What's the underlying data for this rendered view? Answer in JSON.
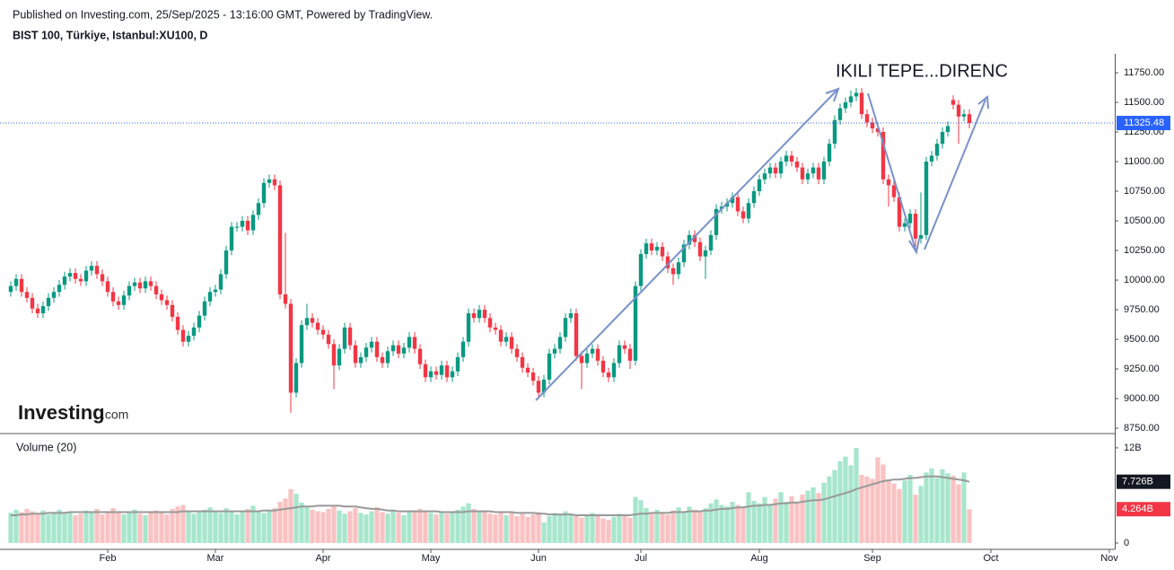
{
  "chart_data": {
    "type": "candlestick",
    "subtitle": "Published on Investing.com, 25/Sep/2025 - 13:16:00 GMT, Powered by TradingView.",
    "title": "BIST 100, Türkiye, Istanbul:XU100, D",
    "annotation": "IKILI TEPE...DIRENC",
    "watermark": "Investing",
    "watermark_suffix": ".com",
    "volume_title": "Volume (20)",
    "up_color": "#089981",
    "down_color": "#f23645",
    "volume_up_color": "#a7e6cc",
    "volume_down_color": "#f9c2c2",
    "ma_color": "#999999",
    "last_price_color": "#2962ff",
    "annotation_color": "#e8141b",
    "grid": false,
    "xlim": [
      -2,
      205
    ],
    "xticks": [
      {
        "value": 18,
        "label": "Feb"
      },
      {
        "value": 38,
        "label": "Mar"
      },
      {
        "value": 58,
        "label": "Apr"
      },
      {
        "value": 78,
        "label": "May"
      },
      {
        "value": 98,
        "label": "Jun"
      },
      {
        "value": 117,
        "label": "Jul"
      },
      {
        "value": 139,
        "label": "Aug"
      },
      {
        "value": 160,
        "label": "Sep"
      },
      {
        "value": 182,
        "label": "Oct"
      },
      {
        "value": 204,
        "label": "Nov"
      }
    ],
    "ylim": [
      8705,
      11909
    ],
    "yticks": [
      {
        "value": 8750,
        "label": "8750.00"
      },
      {
        "value": 9000,
        "label": "9000.00"
      },
      {
        "value": 9250,
        "label": "9250.00"
      },
      {
        "value": 9500,
        "label": "9500.00"
      },
      {
        "value": 9750,
        "label": "9750.00"
      },
      {
        "value": 10000,
        "label": "10000.00"
      },
      {
        "value": 10250,
        "label": "10250.00"
      },
      {
        "value": 10500,
        "label": "10500.00"
      },
      {
        "value": 10750,
        "label": "10750.00"
      },
      {
        "value": 11000,
        "label": "11000.00"
      },
      {
        "value": 11250,
        "label": "11250.00"
      },
      {
        "value": 11500,
        "label": "11500.00"
      },
      {
        "value": 11750,
        "label": "11750.00"
      }
    ],
    "y2lim": [
      -0.8,
      13.8
    ],
    "y2ticks": [
      0,
      {
        "value": 12,
        "label": "12B"
      }
    ],
    "volume_last_label": "4.264B",
    "volume_ma_last_label": "7.726B",
    "open": [
      9900,
      9950,
      10010,
      9900,
      9850,
      9760,
      9720,
      9780,
      9850,
      9900,
      9960,
      10030,
      10060,
      10010,
      9990,
      10080,
      10120,
      10050,
      9990,
      9900,
      9820,
      9790,
      9870,
      9950,
      9980,
      9930,
      9990,
      9950,
      9880,
      9830,
      9790,
      9690,
      9580,
      9480,
      9530,
      9600,
      9700,
      9820,
      9900,
      9920,
      10050,
      10250,
      10450,
      10450,
      10500,
      10420,
      10550,
      10650,
      10820,
      10850,
      10800,
      9880,
      9800,
      9050,
      9300,
      9620,
      9680,
      9640,
      9580,
      9540,
      9460,
      9280,
      9420,
      9600,
      9450,
      9300,
      9350,
      9430,
      9480,
      9350,
      9300,
      9400,
      9450,
      9380,
      9430,
      9520,
      9420,
      9290,
      9180,
      9230,
      9200,
      9280,
      9180,
      9230,
      9350,
      9480,
      9720,
      9680,
      9750,
      9680,
      9600,
      9580,
      9480,
      9520,
      9420,
      9350,
      9260,
      9220,
      9150,
      9050,
      9160,
      9380,
      9420,
      9520,
      9680,
      9720,
      9360,
      9300,
      9380,
      9420,
      9320,
      9220,
      9180,
      9300,
      9450,
      9420,
      9320,
      9950,
      10220,
      10310,
      10250,
      10280,
      10200,
      10100,
      10050,
      10150,
      10300,
      10380,
      10320,
      10200,
      10250,
      10380,
      10600,
      10620,
      10650,
      10700,
      10580,
      10520,
      10650,
      10750,
      10850,
      10900,
      10950,
      10900,
      11000,
      11050,
      11000,
      10950,
      10850,
      10900,
      10950,
      10850,
      11000,
      11150,
      11350,
      11450,
      11500,
      11550,
      11580,
      11400,
      11330,
      11280,
      11250,
      10850,
      10800,
      10700,
      10450,
      10480,
      10560,
      10350,
      10380,
      11000,
      11050,
      11150,
      11250,
      11520,
      11480,
      11380,
      11400
    ],
    "high": [
      9990,
      10050,
      10050,
      9940,
      9890,
      9800,
      9820,
      9890,
      9940,
      10000,
      10070,
      10100,
      10100,
      10050,
      10120,
      10160,
      10160,
      10090,
      10030,
      9940,
      9860,
      9910,
      9990,
      10020,
      10020,
      10030,
      10030,
      9990,
      9920,
      9870,
      9830,
      9730,
      9620,
      9570,
      9640,
      9740,
      9860,
      9940,
      9960,
      10090,
      10290,
      10490,
      10490,
      10540,
      10540,
      10590,
      10690,
      10860,
      10890,
      10890,
      10840,
      10400,
      9840,
      9340,
      9660,
      9800,
      9720,
      9680,
      9620,
      9580,
      9500,
      9460,
      9640,
      9640,
      9490,
      9390,
      9470,
      9520,
      9520,
      9390,
      9440,
      9490,
      9490,
      9470,
      9560,
      9560,
      9460,
      9330,
      9270,
      9270,
      9320,
      9320,
      9270,
      9390,
      9520,
      9760,
      9760,
      9790,
      9790,
      9720,
      9640,
      9620,
      9560,
      9560,
      9460,
      9390,
      9300,
      9260,
      9190,
      9200,
      9420,
      9460,
      9560,
      9720,
      9760,
      9760,
      9400,
      9420,
      9460,
      9460,
      9360,
      9260,
      9340,
      9490,
      9490,
      9460,
      9990,
      10260,
      10350,
      10350,
      10320,
      10320,
      10240,
      10140,
      10190,
      10340,
      10420,
      10420,
      10360,
      10290,
      10420,
      10640,
      10660,
      10690,
      10740,
      10740,
      10620,
      10690,
      10790,
      10890,
      10940,
      10990,
      10990,
      11040,
      11090,
      11090,
      11040,
      10990,
      10940,
      10990,
      10990,
      11040,
      11190,
      11390,
      11490,
      11540,
      11600,
      11620,
      11620,
      11440,
      11370,
      11320,
      11290,
      10890,
      10840,
      10740,
      10520,
      10600,
      10600,
      10740,
      11040,
      11090,
      11190,
      11290,
      11340,
      11560,
      11520,
      11440,
      11440
    ],
    "low": [
      9860,
      9910,
      9860,
      9810,
      9720,
      9680,
      9680,
      9740,
      9810,
      9860,
      9920,
      9990,
      9970,
      9950,
      9950,
      10040,
      10010,
      9950,
      9860,
      9780,
      9750,
      9750,
      9830,
      9910,
      9890,
      9890,
      9910,
      9840,
      9790,
      9750,
      9650,
      9540,
      9440,
      9440,
      9490,
      9560,
      9660,
      9780,
      9860,
      9880,
      10010,
      10210,
      10410,
      10410,
      10380,
      10380,
      10510,
      10610,
      10780,
      10760,
      9840,
      9760,
      8880,
      9010,
      9260,
      9580,
      9600,
      9540,
      9500,
      9420,
      9080,
      9240,
      9380,
      9410,
      9260,
      9260,
      9310,
      9390,
      9310,
      9260,
      9260,
      9360,
      9340,
      9340,
      9390,
      9380,
      9250,
      9140,
      9140,
      9160,
      9160,
      9140,
      9140,
      9190,
      9310,
      9440,
      9640,
      9640,
      9640,
      9560,
      9540,
      9440,
      9440,
      9380,
      9310,
      9220,
      9180,
      9110,
      9000,
      9010,
      9120,
      9340,
      9380,
      9480,
      9640,
      9320,
      9080,
      9260,
      9340,
      9280,
      9180,
      9140,
      9140,
      9260,
      9380,
      9250,
      9280,
      9910,
      10180,
      10210,
      10210,
      10160,
      10060,
      9960,
      10010,
      10110,
      10260,
      10280,
      10160,
      10010,
      10210,
      10340,
      10560,
      10580,
      10610,
      10540,
      10480,
      10480,
      10610,
      10710,
      10810,
      10860,
      10860,
      10860,
      10960,
      10960,
      10910,
      10810,
      10810,
      10860,
      10810,
      10810,
      10960,
      11110,
      11310,
      11410,
      11460,
      11510,
      11360,
      11290,
      11240,
      11210,
      10810,
      10620,
      10660,
      10410,
      10410,
      10440,
      10280,
      10310,
      10340,
      10960,
      11010,
      11110,
      11210,
      11440,
      11150,
      11340,
      11280
    ],
    "close": [
      9950,
      10010,
      9900,
      9850,
      9760,
      9720,
      9780,
      9850,
      9900,
      9960,
      10030,
      10060,
      10010,
      9990,
      10080,
      10120,
      10050,
      9990,
      9900,
      9820,
      9790,
      9870,
      9950,
      9980,
      9930,
      9990,
      9950,
      9880,
      9830,
      9790,
      9690,
      9580,
      9480,
      9530,
      9600,
      9700,
      9820,
      9900,
      9920,
      10050,
      10250,
      10450,
      10450,
      10500,
      10420,
      10550,
      10650,
      10820,
      10850,
      10800,
      9880,
      9800,
      9050,
      9300,
      9620,
      9680,
      9640,
      9580,
      9540,
      9460,
      9280,
      9420,
      9600,
      9450,
      9300,
      9350,
      9430,
      9480,
      9350,
      9300,
      9400,
      9450,
      9380,
      9430,
      9520,
      9420,
      9290,
      9180,
      9230,
      9200,
      9280,
      9180,
      9230,
      9350,
      9480,
      9720,
      9680,
      9750,
      9680,
      9600,
      9580,
      9480,
      9520,
      9420,
      9350,
      9260,
      9220,
      9150,
      9050,
      9160,
      9380,
      9420,
      9520,
      9680,
      9720,
      9360,
      9300,
      9380,
      9420,
      9320,
      9220,
      9180,
      9300,
      9450,
      9420,
      9320,
      9950,
      10220,
      10310,
      10250,
      10280,
      10200,
      10100,
      10050,
      10150,
      10300,
      10380,
      10320,
      10200,
      10250,
      10380,
      10600,
      10620,
      10650,
      10700,
      10580,
      10520,
      10650,
      10750,
      10850,
      10900,
      10950,
      10900,
      11000,
      11050,
      11000,
      10950,
      10850,
      10900,
      10950,
      10850,
      11000,
      11150,
      11350,
      11450,
      11500,
      11550,
      11580,
      11400,
      11330,
      11280,
      11250,
      10850,
      10800,
      10700,
      10450,
      10480,
      10560,
      10350,
      10380,
      11000,
      11050,
      11150,
      11250,
      11300,
      11480,
      11380,
      11400,
      11325.48
    ],
    "volume": [
      3.8,
      4.2,
      3.9,
      4.3,
      4.0,
      3.7,
      4.1,
      3.6,
      3.9,
      4.2,
      3.8,
      4.0,
      3.5,
      3.7,
      4.1,
      3.9,
      4.3,
      3.6,
      3.9,
      4.4,
      3.8,
      3.6,
      4.0,
      4.2,
      3.7,
      3.5,
      3.9,
      4.1,
      3.8,
      3.6,
      4.3,
      4.6,
      4.8,
      4.0,
      3.7,
      3.9,
      4.2,
      4.5,
      4.1,
      3.8,
      4.4,
      4.0,
      3.6,
      3.9,
      4.3,
      4.7,
      4.1,
      3.8,
      4.0,
      4.4,
      5.2,
      5.6,
      6.8,
      6.2,
      5.1,
      4.6,
      4.2,
      4.0,
      3.9,
      4.3,
      4.8,
      4.1,
      3.7,
      4.0,
      4.4,
      3.8,
      3.6,
      4.0,
      4.5,
      3.9,
      3.7,
      4.2,
      3.8,
      3.5,
      4.1,
      3.9,
      4.3,
      4.0,
      3.8,
      3.6,
      4.0,
      3.7,
      3.9,
      4.2,
      4.6,
      5.0,
      4.3,
      3.9,
      4.1,
      3.7,
      3.6,
      3.9,
      3.5,
      3.8,
      3.4,
      3.7,
      3.3,
      3.6,
      3.9,
      2.6,
      3.4,
      3.8,
      3.6,
      4.0,
      3.7,
      3.5,
      3.2,
      3.6,
      3.8,
      3.4,
      3.1,
      2.9,
      3.3,
      3.7,
      3.5,
      3.2,
      5.8,
      5.4,
      4.4,
      3.8,
      4.2,
      3.9,
      3.6,
      4.1,
      4.5,
      4.0,
      4.6,
      4.2,
      3.9,
      4.4,
      5.0,
      5.5,
      4.8,
      4.6,
      5.2,
      4.8,
      4.5,
      6.4,
      5.3,
      5.0,
      5.8,
      4.9,
      5.6,
      6.4,
      5.2,
      5.9,
      5.1,
      6.1,
      6.6,
      7.0,
      6.3,
      7.6,
      8.4,
      9.2,
      10.3,
      10.9,
      9.8,
      12.0,
      8.6,
      8.4,
      8.1,
      10.8,
      9.9,
      8.0,
      7.5,
      6.8,
      7.9,
      8.6,
      6.1,
      7.2,
      8.9,
      9.4,
      8.2,
      9.3,
      8.8,
      8.5,
      7.4,
      8.9,
      4.264
    ],
    "volume_ma": [
      3.5,
      3.5,
      3.6,
      3.6,
      3.7,
      3.7,
      3.7,
      3.8,
      3.8,
      3.8,
      3.8,
      3.9,
      3.9,
      3.9,
      3.9,
      3.9,
      3.9,
      3.9,
      3.9,
      3.9,
      3.9,
      3.9,
      3.9,
      3.9,
      3.9,
      3.9,
      3.9,
      3.9,
      3.9,
      3.9,
      3.9,
      3.9,
      4.0,
      4.0,
      4.0,
      4.0,
      4.0,
      4.0,
      4.0,
      4.0,
      4.0,
      4.0,
      4.0,
      4.0,
      4.0,
      4.0,
      4.0,
      4.1,
      4.1,
      4.1,
      4.2,
      4.3,
      4.4,
      4.5,
      4.6,
      4.6,
      4.6,
      4.7,
      4.7,
      4.7,
      4.7,
      4.7,
      4.6,
      4.6,
      4.6,
      4.5,
      4.4,
      4.3,
      4.3,
      4.2,
      4.1,
      4.1,
      4.0,
      4.0,
      4.0,
      4.0,
      4.0,
      4.0,
      4.0,
      4.0,
      3.9,
      3.9,
      3.9,
      3.9,
      3.9,
      4.0,
      4.0,
      4.0,
      4.0,
      4.0,
      3.9,
      3.9,
      3.9,
      3.9,
      3.8,
      3.8,
      3.8,
      3.8,
      3.7,
      3.7,
      3.6,
      3.6,
      3.6,
      3.6,
      3.6,
      3.5,
      3.5,
      3.5,
      3.5,
      3.5,
      3.5,
      3.5,
      3.5,
      3.5,
      3.5,
      3.5,
      3.6,
      3.7,
      3.7,
      3.8,
      3.8,
      3.8,
      3.8,
      3.9,
      3.9,
      3.9,
      4.0,
      4.0,
      4.0,
      4.1,
      4.1,
      4.2,
      4.3,
      4.3,
      4.4,
      4.5,
      4.5,
      4.6,
      4.7,
      4.7,
      4.8,
      4.8,
      4.9,
      5.0,
      5.0,
      5.1,
      5.1,
      5.2,
      5.3,
      5.4,
      5.4,
      5.5,
      5.7,
      5.9,
      6.1,
      6.3,
      6.5,
      6.8,
      7.0,
      7.2,
      7.4,
      7.6,
      7.8,
      7.9,
      8.0,
      8.0,
      8.1,
      8.2,
      8.2,
      8.3,
      8.4,
      8.4,
      8.4,
      8.3,
      8.2,
      8.1,
      8.0,
      7.9,
      7.726
    ]
  }
}
